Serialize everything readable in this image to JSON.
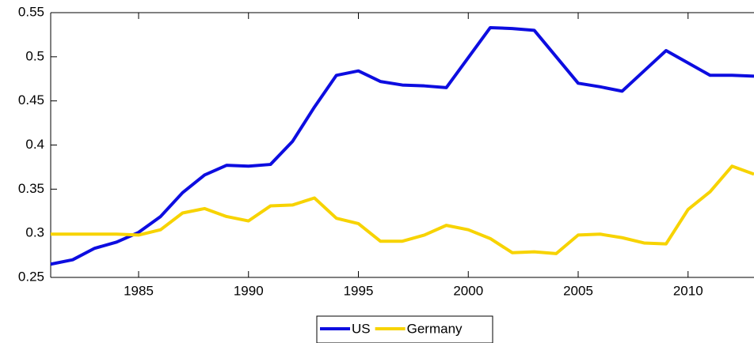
{
  "chart_data": {
    "type": "line",
    "x": [
      1981,
      1982,
      1983,
      1984,
      1985,
      1986,
      1987,
      1988,
      1989,
      1990,
      1991,
      1992,
      1993,
      1994,
      1995,
      1996,
      1997,
      1998,
      1999,
      2000,
      2001,
      2002,
      2003,
      2004,
      2005,
      2006,
      2007,
      2008,
      2009,
      2010,
      2011,
      2012,
      2013
    ],
    "series": [
      {
        "name": "US",
        "color": "#0d0de0",
        "values": [
          0.265,
          0.27,
          0.283,
          0.29,
          0.301,
          0.319,
          0.346,
          0.366,
          0.377,
          0.376,
          0.378,
          0.404,
          0.443,
          0.479,
          0.484,
          0.472,
          0.468,
          0.467,
          0.465,
          0.499,
          0.533,
          0.532,
          0.53,
          0.5,
          0.47,
          0.466,
          0.461,
          0.484,
          0.507,
          0.493,
          0.479,
          0.479,
          0.478
        ]
      },
      {
        "name": "Germany",
        "color": "#f7d300",
        "values": [
          0.299,
          0.299,
          0.299,
          0.299,
          0.298,
          0.304,
          0.323,
          0.328,
          0.319,
          0.314,
          0.331,
          0.332,
          0.34,
          0.317,
          0.311,
          0.291,
          0.291,
          0.298,
          0.309,
          0.304,
          0.294,
          0.278,
          0.279,
          0.277,
          0.298,
          0.299,
          0.295,
          0.289,
          0.288,
          0.327,
          0.347,
          0.376,
          0.367
        ]
      }
    ],
    "xlim": [
      1981,
      2013
    ],
    "xticks": [
      1985,
      1990,
      1995,
      2000,
      2005,
      2010
    ],
    "ylim": [
      0.25,
      0.55
    ],
    "yticks": [
      0.25,
      0.3,
      0.35,
      0.4,
      0.45,
      0.5,
      0.55
    ],
    "grid": false,
    "legend": "bottom"
  }
}
